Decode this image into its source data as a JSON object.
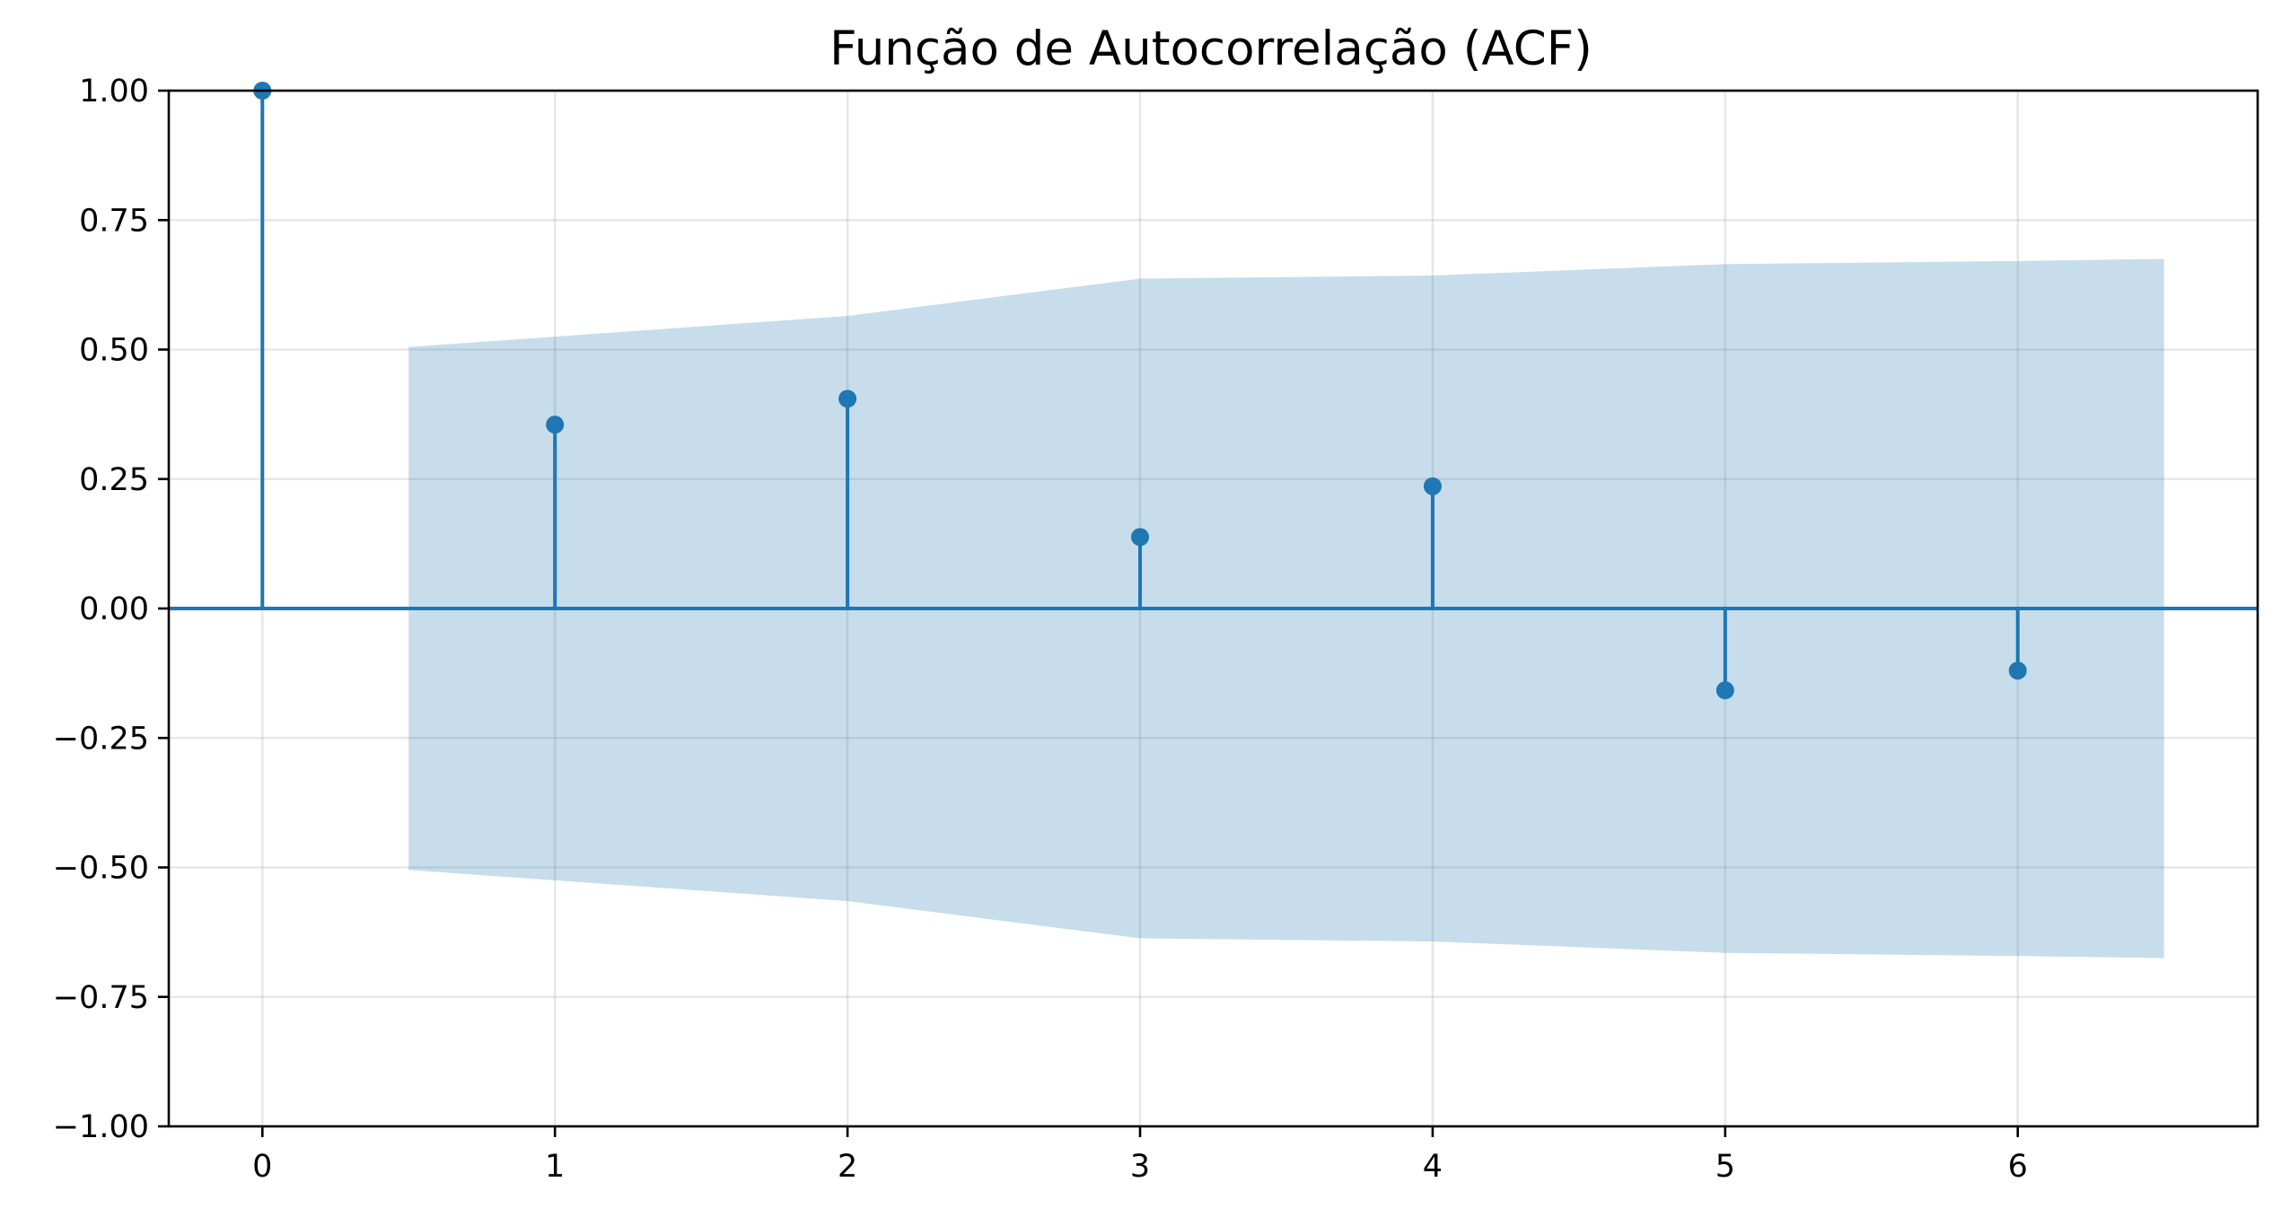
{
  "chart_data": {
    "type": "stem",
    "title": "Função de Autocorrelação (ACF)",
    "xlabel": "",
    "ylabel": "",
    "lags": [
      0,
      1,
      2,
      3,
      4,
      5,
      6
    ],
    "acf": [
      1.0,
      0.355,
      0.405,
      0.138,
      0.236,
      -0.158,
      -0.12
    ],
    "confidence_interval": {
      "x": [
        0.5,
        1,
        2,
        3,
        4,
        5,
        6,
        6.5
      ],
      "upper": [
        0.505,
        0.525,
        0.565,
        0.637,
        0.643,
        0.665,
        0.671,
        0.675
      ],
      "lower": [
        -0.505,
        -0.525,
        -0.565,
        -0.637,
        -0.643,
        -0.665,
        -0.671,
        -0.675
      ]
    },
    "xlim": [
      -0.32,
      6.82
    ],
    "ylim": [
      -1.0,
      1.0
    ],
    "xticks": [
      0,
      1,
      2,
      3,
      4,
      5,
      6
    ],
    "xtick_labels": [
      "0",
      "1",
      "2",
      "3",
      "4",
      "5",
      "6"
    ],
    "yticks": [
      -1.0,
      -0.75,
      -0.5,
      -0.25,
      0.0,
      0.25,
      0.5,
      0.75,
      1.0
    ],
    "ytick_labels": [
      "−1.00",
      "−0.75",
      "−0.50",
      "−0.25",
      "0.00",
      "0.25",
      "0.50",
      "0.75",
      "1.00"
    ],
    "grid": true,
    "colors": {
      "stem": "#1f77b4",
      "confidence_band": "#1f77b4",
      "zero_line": "#1f77b4"
    }
  }
}
